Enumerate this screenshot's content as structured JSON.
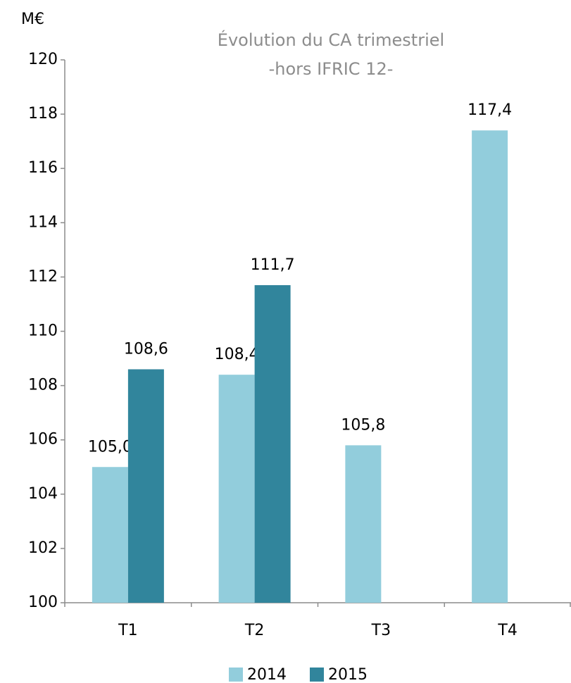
{
  "chart_data": {
    "type": "bar",
    "title": "Évolution du CA trimestriel",
    "subtitle": "-hors IFRIC 12-",
    "y_label": "M€",
    "categories": [
      "T1",
      "T2",
      "T3",
      "T4"
    ],
    "series": [
      {
        "name": "2014",
        "color": "#92cddc",
        "values": [
          105.0,
          108.4,
          105.8,
          117.4
        ],
        "value_labels": [
          "105,0",
          "108,4",
          "105,8",
          "117,4"
        ]
      },
      {
        "name": "2015",
        "color": "#31859c",
        "values": [
          108.6,
          111.7,
          null,
          null
        ],
        "value_labels": [
          "108,6",
          "111,7",
          null,
          null
        ]
      }
    ],
    "ylim": [
      100,
      120
    ],
    "yticks": [
      100,
      102,
      104,
      106,
      108,
      110,
      112,
      114,
      116,
      118,
      120
    ],
    "grid": false,
    "legend": "bottom"
  }
}
